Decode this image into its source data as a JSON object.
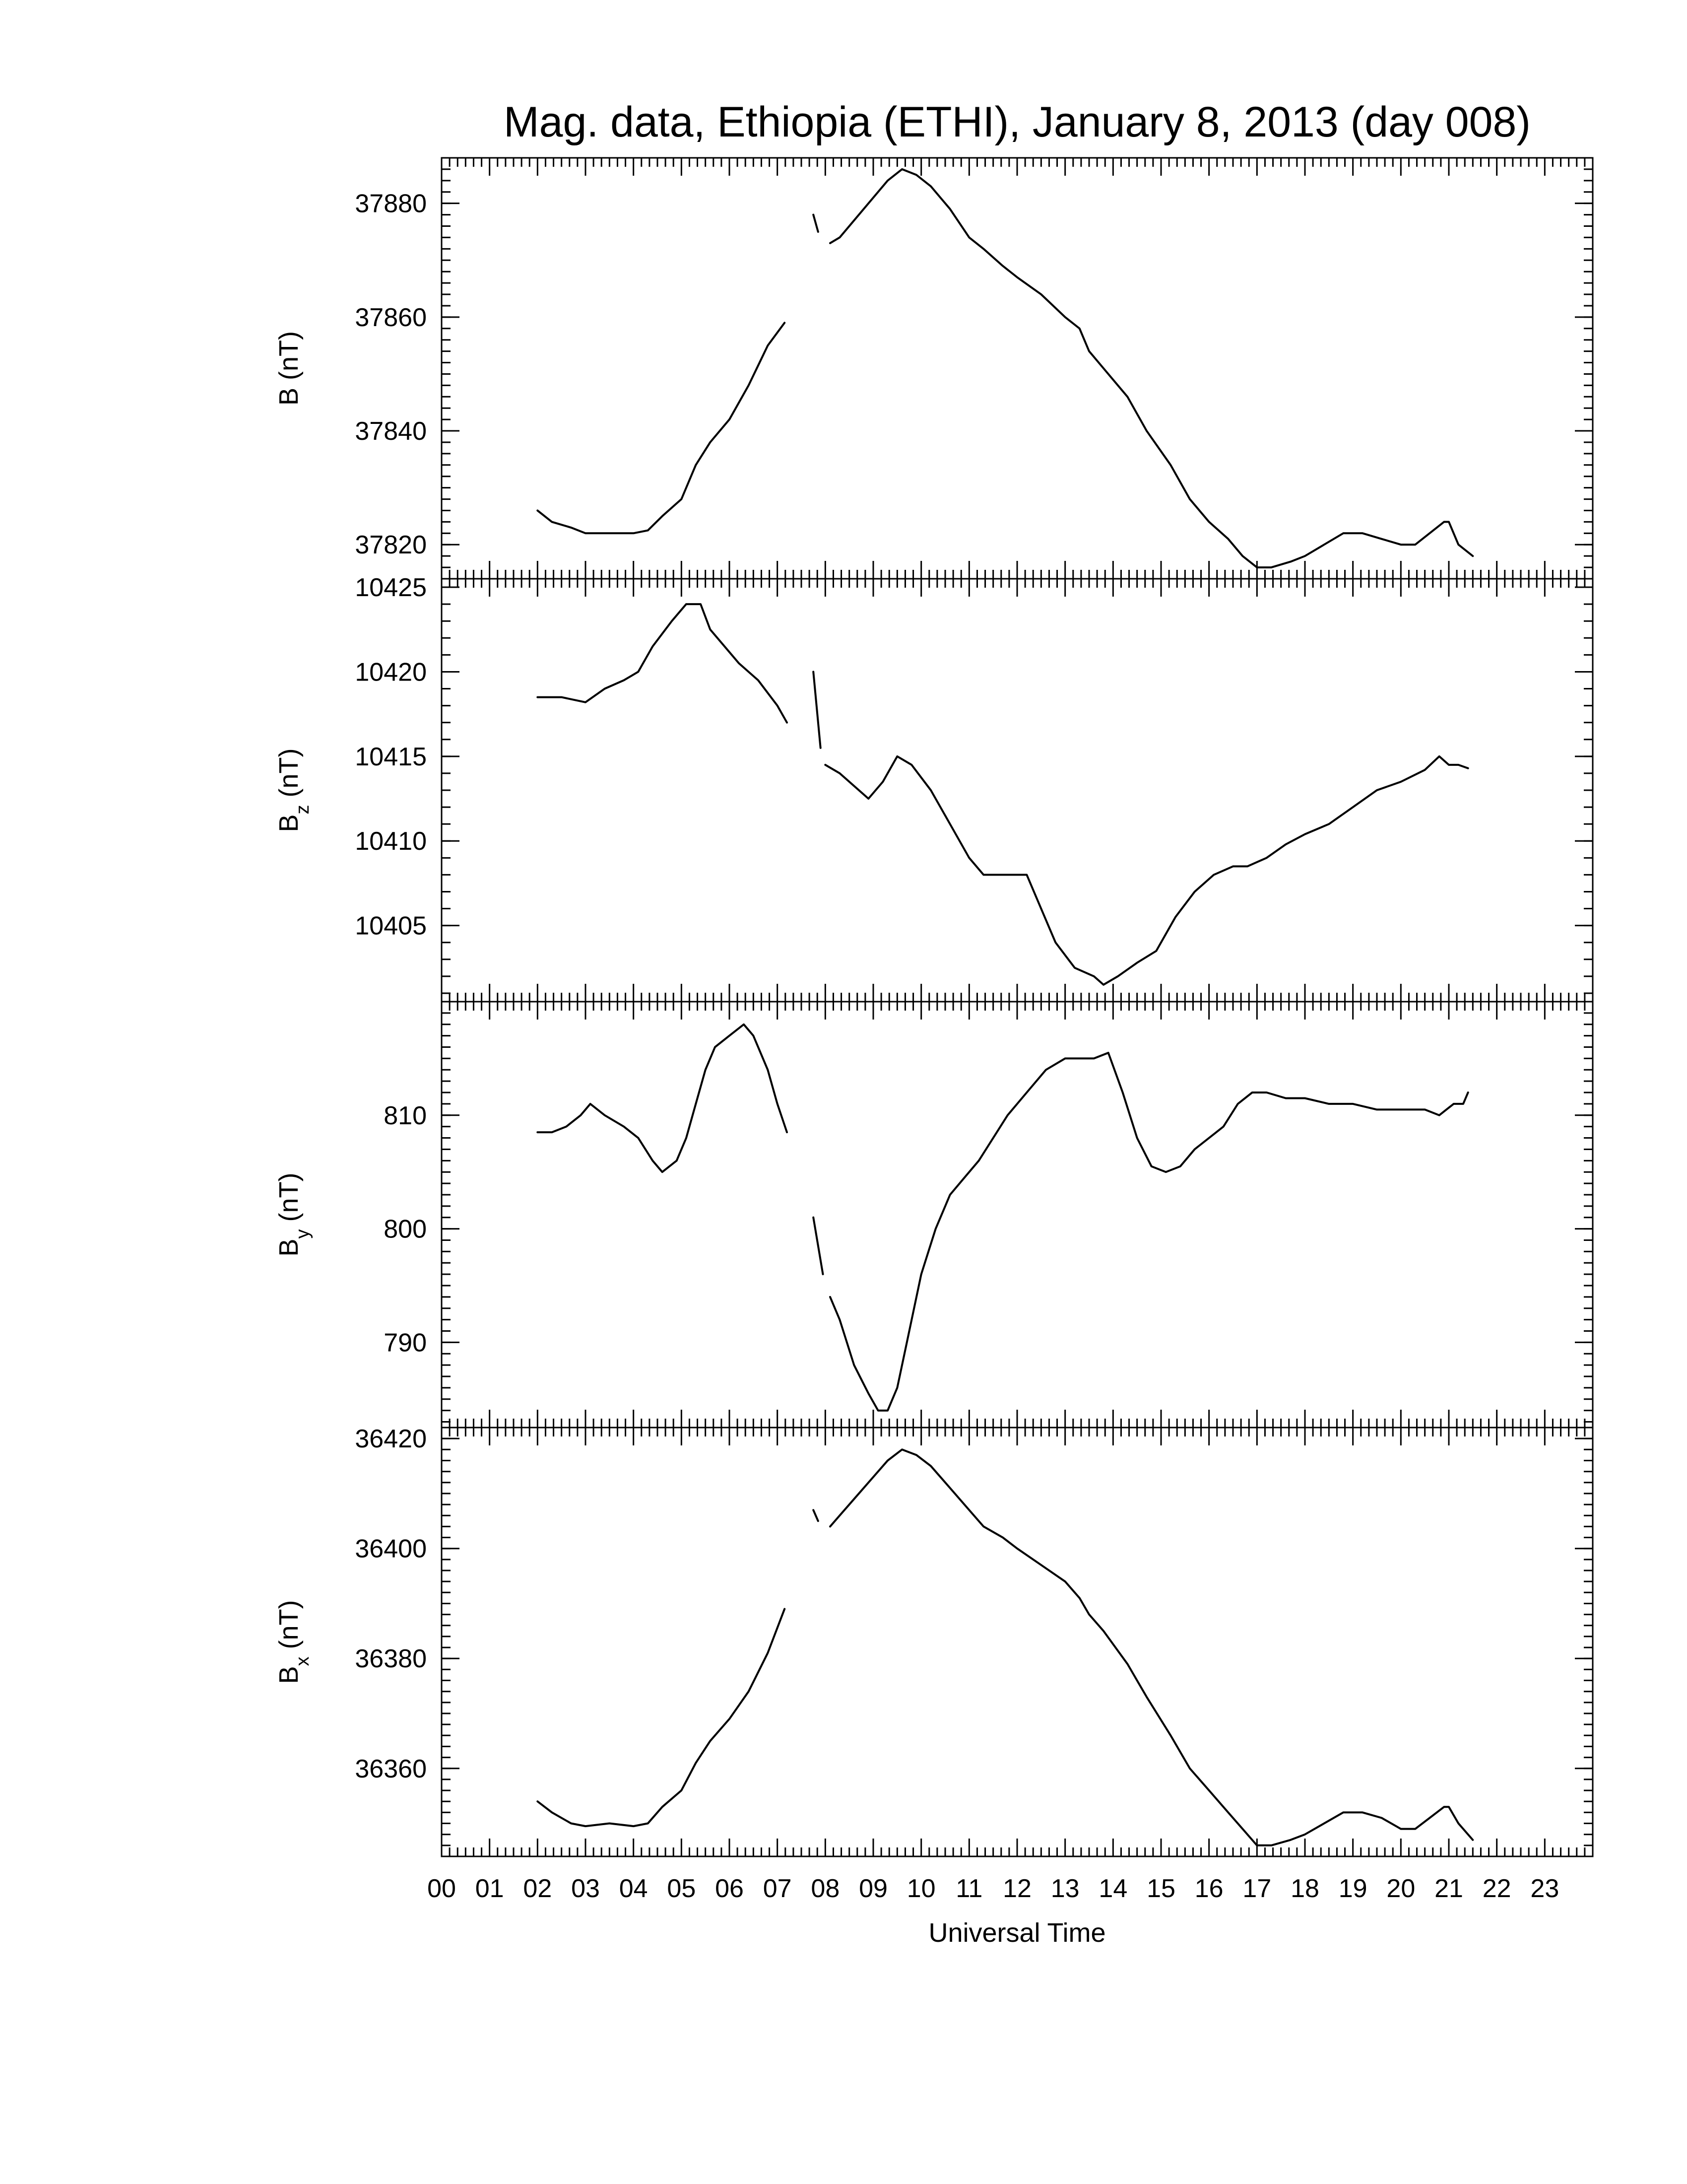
{
  "chart_data": {
    "type": "line",
    "title": "Mag. data, Ethiopia (ETHI), January 8, 2013 (day 008)",
    "xlabel": "Universal Time",
    "xlim": [
      0,
      24
    ],
    "x_tick_labels": [
      "00",
      "01",
      "02",
      "03",
      "04",
      "05",
      "06",
      "07",
      "08",
      "09",
      "10",
      "11",
      "12",
      "13",
      "14",
      "15",
      "16",
      "17",
      "18",
      "19",
      "20",
      "21",
      "22",
      "23"
    ],
    "x_minor_ticks_per_hour": 6,
    "panels": [
      {
        "name": "B",
        "ylabel_main": "B",
        "ylabel_sub": "",
        "ylabel_unit": " (nT)",
        "ylim": [
          37814,
          37888
        ],
        "y_ticks": [
          37820,
          37840,
          37860,
          37880
        ],
        "y_tick_labels": [
          "37820",
          "37840",
          "37860",
          "37880"
        ],
        "y_minor_step": 2,
        "segments": [
          [
            [
              2.0,
              37826
            ],
            [
              2.3,
              37824
            ],
            [
              2.7,
              37823
            ],
            [
              3.0,
              37822
            ],
            [
              3.5,
              37822
            ],
            [
              4.0,
              37822
            ],
            [
              4.3,
              37822.5
            ],
            [
              4.6,
              37825
            ],
            [
              5.0,
              37828
            ],
            [
              5.3,
              37834
            ],
            [
              5.6,
              37838
            ],
            [
              6.0,
              37842
            ],
            [
              6.4,
              37848
            ],
            [
              6.8,
              37855
            ],
            [
              7.15,
              37859
            ]
          ],
          [
            [
              7.75,
              37878
            ],
            [
              7.85,
              37875
            ]
          ],
          [
            [
              8.1,
              37873
            ],
            [
              8.3,
              37874
            ],
            [
              8.6,
              37877
            ],
            [
              9.0,
              37881
            ],
            [
              9.3,
              37884
            ],
            [
              9.6,
              37886
            ],
            [
              9.9,
              37885
            ],
            [
              10.2,
              37883
            ],
            [
              10.6,
              37879
            ],
            [
              11.0,
              37874
            ],
            [
              11.3,
              37872
            ],
            [
              11.7,
              37869
            ],
            [
              12.0,
              37867
            ],
            [
              12.5,
              37864
            ],
            [
              13.0,
              37860
            ],
            [
              13.3,
              37858
            ],
            [
              13.5,
              37854
            ],
            [
              13.8,
              37851
            ],
            [
              14.3,
              37846
            ],
            [
              14.7,
              37840
            ],
            [
              15.2,
              37834
            ],
            [
              15.6,
              37828
            ],
            [
              16.0,
              37824
            ],
            [
              16.4,
              37821
            ],
            [
              16.7,
              37818
            ],
            [
              17.0,
              37816
            ],
            [
              17.3,
              37816
            ],
            [
              17.7,
              37817
            ],
            [
              18.0,
              37818
            ],
            [
              18.4,
              37820
            ],
            [
              18.8,
              37822
            ],
            [
              19.2,
              37822
            ],
            [
              19.6,
              37821
            ],
            [
              20.0,
              37820
            ],
            [
              20.3,
              37820
            ],
            [
              20.6,
              37822
            ],
            [
              20.9,
              37824
            ],
            [
              21.0,
              37824
            ],
            [
              21.2,
              37820
            ],
            [
              21.5,
              37818
            ]
          ]
        ]
      },
      {
        "name": "Bz",
        "ylabel_main": "B",
        "ylabel_sub": "z",
        "ylabel_unit": " (nT)",
        "ylim": [
          10400.5,
          10425.5
        ],
        "y_ticks": [
          10405,
          10410,
          10415,
          10420,
          10425
        ],
        "y_tick_labels": [
          "10405",
          "10410",
          "10415",
          "10420",
          "10425"
        ],
        "y_minor_step": 1,
        "segments": [
          [
            [
              2.0,
              10418.5
            ],
            [
              2.5,
              10418.5
            ],
            [
              3.0,
              10418.2
            ],
            [
              3.4,
              10419
            ],
            [
              3.8,
              10419.5
            ],
            [
              4.1,
              10420
            ],
            [
              4.4,
              10421.5
            ],
            [
              4.8,
              10423
            ],
            [
              5.1,
              10424
            ],
            [
              5.4,
              10424
            ],
            [
              5.6,
              10422.5
            ],
            [
              5.9,
              10421.5
            ],
            [
              6.2,
              10420.5
            ],
            [
              6.6,
              10419.5
            ],
            [
              7.0,
              10418
            ],
            [
              7.2,
              10417
            ]
          ],
          [
            [
              7.75,
              10420
            ],
            [
              7.9,
              10415.5
            ]
          ],
          [
            [
              8.0,
              10414.5
            ],
            [
              8.3,
              10414
            ],
            [
              8.7,
              10413
            ],
            [
              8.9,
              10412.5
            ],
            [
              9.2,
              10413.5
            ],
            [
              9.5,
              10415
            ],
            [
              9.8,
              10414.5
            ],
            [
              10.2,
              10413
            ],
            [
              10.6,
              10411
            ],
            [
              11.0,
              10409
            ],
            [
              11.3,
              10408
            ],
            [
              11.8,
              10408
            ],
            [
              12.2,
              10408
            ],
            [
              12.5,
              10406
            ],
            [
              12.8,
              10404
            ],
            [
              13.2,
              10402.5
            ],
            [
              13.6,
              10402
            ],
            [
              13.8,
              10401.5
            ],
            [
              14.1,
              10402
            ],
            [
              14.5,
              10402.8
            ],
            [
              14.9,
              10403.5
            ],
            [
              15.3,
              10405.5
            ],
            [
              15.7,
              10407
            ],
            [
              16.1,
              10408
            ],
            [
              16.5,
              10408.5
            ],
            [
              16.8,
              10408.5
            ],
            [
              17.2,
              10409
            ],
            [
              17.6,
              10409.8
            ],
            [
              18.0,
              10410.4
            ],
            [
              18.5,
              10411
            ],
            [
              19.0,
              10412
            ],
            [
              19.5,
              10413
            ],
            [
              20.0,
              10413.5
            ],
            [
              20.5,
              10414.2
            ],
            [
              20.8,
              10415
            ],
            [
              21.0,
              10414.5
            ],
            [
              21.2,
              10414.5
            ],
            [
              21.4,
              10414.3
            ]
          ]
        ]
      },
      {
        "name": "By",
        "ylabel_main": "B",
        "ylabel_sub": "y",
        "ylabel_unit": " (nT)",
        "ylim": [
          782.5,
          820
        ],
        "y_ticks": [
          790,
          800,
          810
        ],
        "y_tick_labels": [
          "790",
          "800",
          "810"
        ],
        "y_minor_step": 1,
        "segments": [
          [
            [
              2.0,
              808.5
            ],
            [
              2.3,
              808.5
            ],
            [
              2.6,
              809
            ],
            [
              2.9,
              810
            ],
            [
              3.1,
              811
            ],
            [
              3.4,
              810
            ],
            [
              3.8,
              809
            ],
            [
              4.1,
              808
            ],
            [
              4.4,
              806
            ],
            [
              4.6,
              805
            ],
            [
              4.9,
              806
            ],
            [
              5.1,
              808
            ],
            [
              5.3,
              811
            ],
            [
              5.5,
              814
            ],
            [
              5.7,
              816
            ],
            [
              6.0,
              817
            ],
            [
              6.3,
              818
            ],
            [
              6.5,
              817
            ],
            [
              6.8,
              814
            ],
            [
              7.0,
              811
            ],
            [
              7.2,
              808.5
            ]
          ],
          [
            [
              7.75,
              801
            ],
            [
              7.95,
              796
            ]
          ],
          [
            [
              8.1,
              794
            ],
            [
              8.3,
              792
            ],
            [
              8.6,
              788
            ],
            [
              8.9,
              785.5
            ],
            [
              9.1,
              784
            ],
            [
              9.3,
              784
            ],
            [
              9.5,
              786
            ],
            [
              9.7,
              790
            ],
            [
              10.0,
              796
            ],
            [
              10.3,
              800
            ],
            [
              10.6,
              803
            ],
            [
              10.9,
              804.5
            ],
            [
              11.2,
              806
            ],
            [
              11.5,
              808
            ],
            [
              11.8,
              810
            ],
            [
              12.2,
              812
            ],
            [
              12.6,
              814
            ],
            [
              13.0,
              815
            ],
            [
              13.3,
              815
            ],
            [
              13.6,
              815
            ],
            [
              13.9,
              815.5
            ],
            [
              14.2,
              812
            ],
            [
              14.5,
              808
            ],
            [
              14.8,
              805.5
            ],
            [
              15.1,
              805
            ],
            [
              15.4,
              805.5
            ],
            [
              15.7,
              807
            ],
            [
              16.0,
              808
            ],
            [
              16.3,
              809
            ],
            [
              16.6,
              811
            ],
            [
              16.9,
              812
            ],
            [
              17.2,
              812
            ],
            [
              17.6,
              811.5
            ],
            [
              18.0,
              811.5
            ],
            [
              18.5,
              811
            ],
            [
              19.0,
              811
            ],
            [
              19.5,
              810.5
            ],
            [
              20.0,
              810.5
            ],
            [
              20.5,
              810.5
            ],
            [
              20.8,
              810
            ],
            [
              21.1,
              811
            ],
            [
              21.3,
              811
            ],
            [
              21.4,
              812
            ]
          ]
        ]
      },
      {
        "name": "Bx",
        "ylabel_main": "B",
        "ylabel_sub": "x",
        "ylabel_unit": " (nT)",
        "ylim": [
          36344,
          36422
        ],
        "y_ticks": [
          36360,
          36380,
          36400,
          36420
        ],
        "y_tick_labels": [
          "36360",
          "36380",
          "36400",
          "36420"
        ],
        "y_minor_step": 2,
        "segments": [
          [
            [
              2.0,
              36354
            ],
            [
              2.3,
              36352
            ],
            [
              2.7,
              36350
            ],
            [
              3.0,
              36349.5
            ],
            [
              3.5,
              36350
            ],
            [
              4.0,
              36349.5
            ],
            [
              4.3,
              36350
            ],
            [
              4.6,
              36353
            ],
            [
              5.0,
              36356
            ],
            [
              5.3,
              36361
            ],
            [
              5.6,
              36365
            ],
            [
              6.0,
              36369
            ],
            [
              6.4,
              36374
            ],
            [
              6.8,
              36381
            ],
            [
              7.15,
              36389
            ]
          ],
          [
            [
              7.75,
              36407
            ],
            [
              7.85,
              36405
            ]
          ],
          [
            [
              8.1,
              36404
            ],
            [
              8.3,
              36406
            ],
            [
              8.6,
              36409
            ],
            [
              9.0,
              36413
            ],
            [
              9.3,
              36416
            ],
            [
              9.6,
              36418
            ],
            [
              9.9,
              36417
            ],
            [
              10.2,
              36415
            ],
            [
              10.6,
              36411
            ],
            [
              11.0,
              36407
            ],
            [
              11.3,
              36404
            ],
            [
              11.7,
              36402
            ],
            [
              12.0,
              36400
            ],
            [
              12.5,
              36397
            ],
            [
              13.0,
              36394
            ],
            [
              13.3,
              36391
            ],
            [
              13.5,
              36388
            ],
            [
              13.8,
              36385
            ],
            [
              14.3,
              36379
            ],
            [
              14.7,
              36373
            ],
            [
              15.2,
              36366
            ],
            [
              15.6,
              36360
            ],
            [
              16.0,
              36356
            ],
            [
              16.4,
              36352
            ],
            [
              16.7,
              36349
            ],
            [
              17.0,
              36346
            ],
            [
              17.3,
              36346
            ],
            [
              17.7,
              36347
            ],
            [
              18.0,
              36348
            ],
            [
              18.4,
              36350
            ],
            [
              18.8,
              36352
            ],
            [
              19.2,
              36352
            ],
            [
              19.6,
              36351
            ],
            [
              20.0,
              36349
            ],
            [
              20.3,
              36349
            ],
            [
              20.6,
              36351
            ],
            [
              20.9,
              36353
            ],
            [
              21.0,
              36353
            ],
            [
              21.2,
              36350
            ],
            [
              21.5,
              36347
            ]
          ]
        ]
      }
    ]
  }
}
